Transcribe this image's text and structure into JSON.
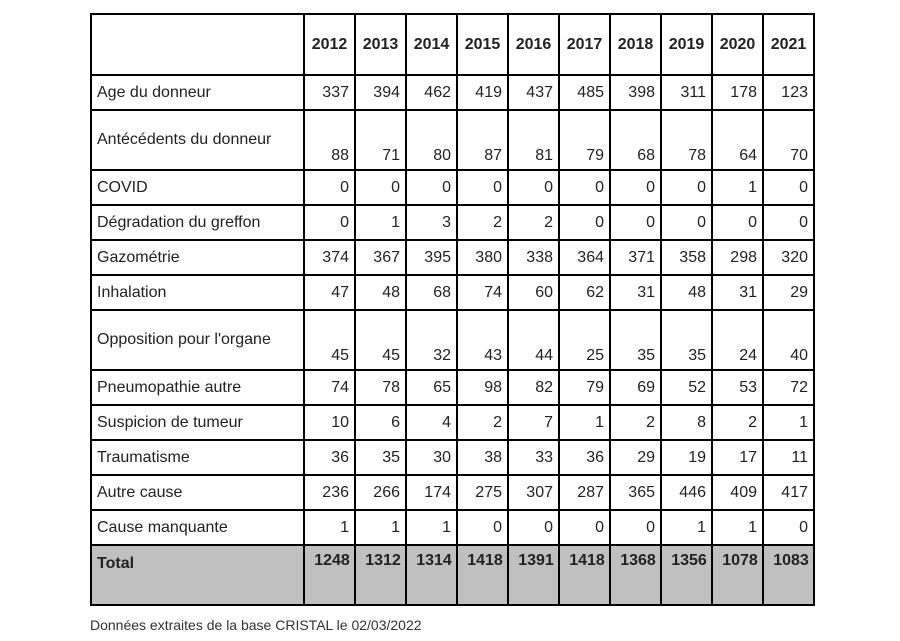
{
  "table": {
    "years": [
      "2012",
      "2013",
      "2014",
      "2015",
      "2016",
      "2017",
      "2018",
      "2019",
      "2020",
      "2021"
    ],
    "rows": [
      {
        "label": "Age du donneur",
        "tall": false,
        "values": [
          "337",
          "394",
          "462",
          "419",
          "437",
          "485",
          "398",
          "311",
          "178",
          "123"
        ]
      },
      {
        "label": "Antécédents du donneur",
        "tall": true,
        "values": [
          "88",
          "71",
          "80",
          "87",
          "81",
          "79",
          "68",
          "78",
          "64",
          "70"
        ]
      },
      {
        "label": "COVID",
        "tall": false,
        "values": [
          "0",
          "0",
          "0",
          "0",
          "0",
          "0",
          "0",
          "0",
          "1",
          "0"
        ]
      },
      {
        "label": "Dégradation du greffon",
        "tall": false,
        "values": [
          "0",
          "1",
          "3",
          "2",
          "2",
          "0",
          "0",
          "0",
          "0",
          "0"
        ]
      },
      {
        "label": "Gazométrie",
        "tall": false,
        "values": [
          "374",
          "367",
          "395",
          "380",
          "338",
          "364",
          "371",
          "358",
          "298",
          "320"
        ]
      },
      {
        "label": "Inhalation",
        "tall": false,
        "values": [
          "47",
          "48",
          "68",
          "74",
          "60",
          "62",
          "31",
          "48",
          "31",
          "29"
        ]
      },
      {
        "label": "Opposition pour l'organe",
        "tall": true,
        "values": [
          "45",
          "45",
          "32",
          "43",
          "44",
          "25",
          "35",
          "35",
          "24",
          "40"
        ]
      },
      {
        "label": "Pneumopathie autre",
        "tall": false,
        "values": [
          "74",
          "78",
          "65",
          "98",
          "82",
          "79",
          "69",
          "52",
          "53",
          "72"
        ]
      },
      {
        "label": "Suspicion de tumeur",
        "tall": false,
        "values": [
          "10",
          "6",
          "4",
          "2",
          "7",
          "1",
          "2",
          "8",
          "2",
          "1"
        ]
      },
      {
        "label": "Traumatisme",
        "tall": false,
        "values": [
          "36",
          "35",
          "30",
          "38",
          "33",
          "36",
          "29",
          "19",
          "17",
          "11"
        ]
      },
      {
        "label": "Autre cause",
        "tall": false,
        "values": [
          "236",
          "266",
          "174",
          "275",
          "307",
          "287",
          "365",
          "446",
          "409",
          "417"
        ]
      },
      {
        "label": "Cause manquante",
        "tall": false,
        "values": [
          "1",
          "1",
          "1",
          "0",
          "0",
          "0",
          "0",
          "1",
          "1",
          "0"
        ]
      }
    ],
    "total": {
      "label": "Total",
      "values": [
        "1248",
        "1312",
        "1314",
        "1418",
        "1391",
        "1418",
        "1368",
        "1356",
        "1078",
        "1083"
      ]
    },
    "total_row_color": "#c0c0c0"
  },
  "footer": {
    "source": "Données extraites de la base CRISTAL le 02/03/2022"
  }
}
